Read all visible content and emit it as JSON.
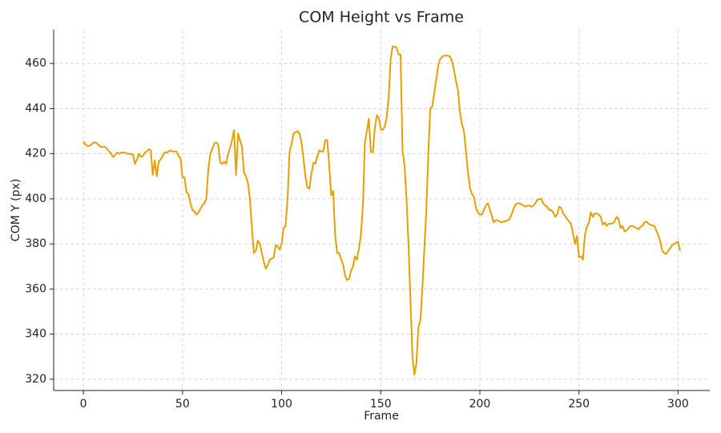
{
  "chart_data": {
    "type": "line",
    "title": "COM Height vs Frame",
    "x_label": "Frame",
    "y_label": "COM Y (px)",
    "color": "#e69f00",
    "grid": true,
    "xlim": [
      -15,
      316
    ],
    "ylim": [
      315,
      475
    ],
    "xticks": [
      0,
      50,
      100,
      150,
      200,
      250,
      300
    ],
    "yticks": [
      320,
      340,
      360,
      380,
      400,
      420,
      440,
      460
    ],
    "x": [
      0,
      1,
      2,
      3,
      4,
      5,
      6,
      7,
      8,
      9,
      10,
      11,
      12,
      13,
      14,
      15,
      16,
      17,
      18,
      19,
      20,
      21,
      22,
      23,
      24,
      25,
      26,
      27,
      28,
      29,
      30,
      31,
      32,
      33,
      34,
      35,
      36,
      37,
      38,
      39,
      40,
      41,
      42,
      43,
      44,
      45,
      46,
      47,
      48,
      49,
      50,
      51,
      52,
      53,
      54,
      55,
      56,
      57,
      58,
      59,
      60,
      61,
      62,
      63,
      64,
      65,
      66,
      67,
      68,
      69,
      70,
      71,
      72,
      73,
      74,
      75,
      76,
      77,
      78,
      79,
      80,
      81,
      82,
      83,
      84,
      85,
      86,
      87,
      88,
      89,
      90,
      91,
      92,
      93,
      94,
      95,
      96,
      97,
      98,
      99,
      100,
      101,
      102,
      103,
      104,
      105,
      106,
      107,
      108,
      109,
      110,
      111,
      112,
      113,
      114,
      115,
      116,
      117,
      118,
      119,
      120,
      121,
      122,
      123,
      124,
      125,
      126,
      127,
      128,
      129,
      130,
      131,
      132,
      133,
      134,
      135,
      136,
      137,
      138,
      139,
      140,
      141,
      142,
      143,
      144,
      145,
      146,
      147,
      148,
      149,
      150,
      151,
      152,
      153,
      154,
      155,
      156,
      157,
      158,
      159,
      160,
      161,
      162,
      163,
      164,
      165,
      166,
      167,
      168,
      169,
      170,
      171,
      172,
      173,
      174,
      175,
      176,
      177,
      178,
      179,
      180,
      181,
      182,
      183,
      184,
      185,
      186,
      187,
      188,
      189,
      190,
      191,
      192,
      193,
      194,
      195,
      196,
      197,
      198,
      199,
      200,
      201,
      202,
      203,
      204,
      205,
      206,
      207,
      208,
      209,
      210,
      211,
      212,
      213,
      214,
      215,
      216,
      217,
      218,
      219,
      220,
      221,
      222,
      223,
      224,
      225,
      226,
      227,
      228,
      229,
      230,
      231,
      232,
      233,
      234,
      235,
      236,
      237,
      238,
      239,
      240,
      241,
      242,
      243,
      244,
      245,
      246,
      247,
      248,
      249,
      250,
      251,
      252,
      253,
      254,
      255,
      256,
      257,
      258,
      259,
      260,
      261,
      262,
      263,
      264,
      265,
      266,
      267,
      268,
      269,
      270,
      271,
      272,
      273,
      274,
      275,
      276,
      277,
      278,
      279,
      280,
      281,
      282,
      283,
      284,
      285,
      286,
      287,
      288,
      289,
      290,
      291,
      292,
      293,
      294,
      295,
      296,
      297,
      298,
      299,
      300,
      301
    ],
    "values": [
      425.5,
      424,
      423.5,
      423.5,
      424,
      425,
      425,
      424.5,
      423.5,
      423,
      423,
      423,
      422,
      421,
      420,
      418.5,
      419.5,
      420.5,
      420,
      420.5,
      420.5,
      420.5,
      420,
      420,
      420,
      419.5,
      415.5,
      417.5,
      420,
      418.5,
      419,
      420.5,
      421,
      422,
      421.5,
      410.5,
      417,
      410,
      416.5,
      417.5,
      419,
      420.5,
      420.5,
      421,
      421.5,
      421,
      421,
      421,
      419,
      418,
      409.5,
      409.5,
      403,
      402,
      398,
      395,
      394.5,
      393,
      394,
      395.5,
      397,
      398,
      400,
      413,
      420,
      422,
      424.5,
      425,
      424,
      416,
      415.5,
      416.5,
      415.5,
      420,
      422.5,
      426,
      430.5,
      410.5,
      429,
      426,
      423,
      411.5,
      410,
      407,
      400,
      387,
      376,
      377,
      381.5,
      380,
      376,
      372,
      369,
      370.5,
      373,
      373.5,
      374,
      379.5,
      379,
      377.5,
      380,
      387,
      388,
      400,
      421,
      424,
      429,
      429.5,
      430,
      429,
      425,
      418,
      410,
      405,
      404.5,
      411,
      416,
      415.5,
      419,
      421.5,
      421,
      421,
      426,
      426,
      415,
      401.5,
      403.5,
      384,
      376,
      376,
      373,
      371,
      366,
      364,
      364.5,
      368,
      370,
      374.5,
      373,
      378,
      384,
      397,
      425,
      430,
      435.5,
      421,
      420.5,
      431,
      437,
      436,
      431,
      430.5,
      432,
      436,
      445,
      462,
      467.5,
      467.5,
      467,
      464,
      464,
      421,
      415,
      400,
      380,
      355,
      330,
      322,
      327,
      343,
      346,
      360,
      378,
      395,
      420,
      440,
      441,
      447,
      453,
      459,
      462,
      463,
      463.5,
      463.5,
      463.5,
      463,
      461,
      457,
      452,
      448,
      438,
      433,
      430,
      421,
      412,
      405,
      402,
      401,
      396,
      394,
      393,
      393,
      395,
      397,
      398,
      395.5,
      392.5,
      389.5,
      390.5,
      390.5,
      390,
      389.5,
      390,
      390,
      390.5,
      391,
      393,
      395.5,
      397.5,
      398,
      398,
      397.5,
      397,
      396.5,
      397,
      397,
      396.5,
      397,
      398,
      399.5,
      399.8,
      400,
      398,
      397,
      396.5,
      395,
      395,
      394,
      392,
      393,
      396.5,
      396,
      393.5,
      392.5,
      391,
      390,
      389,
      384.5,
      380,
      383.5,
      374,
      374.5,
      373,
      384,
      387.5,
      389.5,
      394,
      392,
      393.5,
      393.5,
      393,
      392,
      388.5,
      389.5,
      388,
      389,
      389,
      389,
      390,
      392,
      391,
      387,
      388,
      385.5,
      386,
      387,
      388,
      388,
      387.5,
      387,
      386.5,
      387.5,
      388,
      389.5,
      390,
      389,
      388.5,
      388.2,
      388,
      386,
      384,
      381,
      377,
      376,
      375.5,
      377,
      378,
      379.5,
      380,
      380.5,
      381,
      377
    ]
  }
}
